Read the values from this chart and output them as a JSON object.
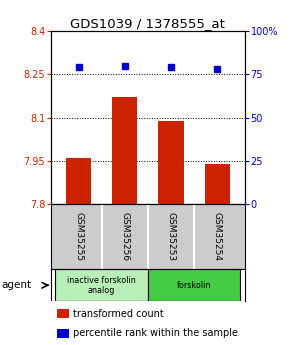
{
  "title": "GDS1039 / 1378555_at",
  "samples": [
    "GSM35255",
    "GSM35256",
    "GSM35253",
    "GSM35254"
  ],
  "bar_values": [
    7.96,
    8.17,
    8.09,
    7.94
  ],
  "percentile_values": [
    79,
    80,
    79,
    78
  ],
  "ylim_left": [
    7.8,
    8.4
  ],
  "ylim_right": [
    0,
    100
  ],
  "yticks_left": [
    7.8,
    7.95,
    8.1,
    8.25,
    8.4
  ],
  "yticks_left_labels": [
    "7.8",
    "7.95",
    "8.1",
    "8.25",
    "8.4"
  ],
  "yticks_right": [
    0,
    25,
    50,
    75,
    100
  ],
  "yticks_right_labels": [
    "0",
    "25",
    "50",
    "75",
    "100%"
  ],
  "hlines": [
    7.95,
    8.1,
    8.25
  ],
  "bar_color": "#cc2200",
  "percentile_color": "#0000cc",
  "bar_width": 0.55,
  "groups": [
    {
      "label": "inactive forskolin\nanalog",
      "indices": [
        0,
        1
      ],
      "color": "#b8eeb8"
    },
    {
      "label": "forskolin",
      "indices": [
        2,
        3
      ],
      "color": "#44cc44"
    }
  ],
  "sample_bg": "#cccccc",
  "agent_label": "agent",
  "legend_bar_label": "transformed count",
  "legend_pct_label": "percentile rank within the sample",
  "title_fontsize": 9.5,
  "tick_fontsize": 7,
  "legend_fontsize": 7,
  "background_color": "#ffffff"
}
